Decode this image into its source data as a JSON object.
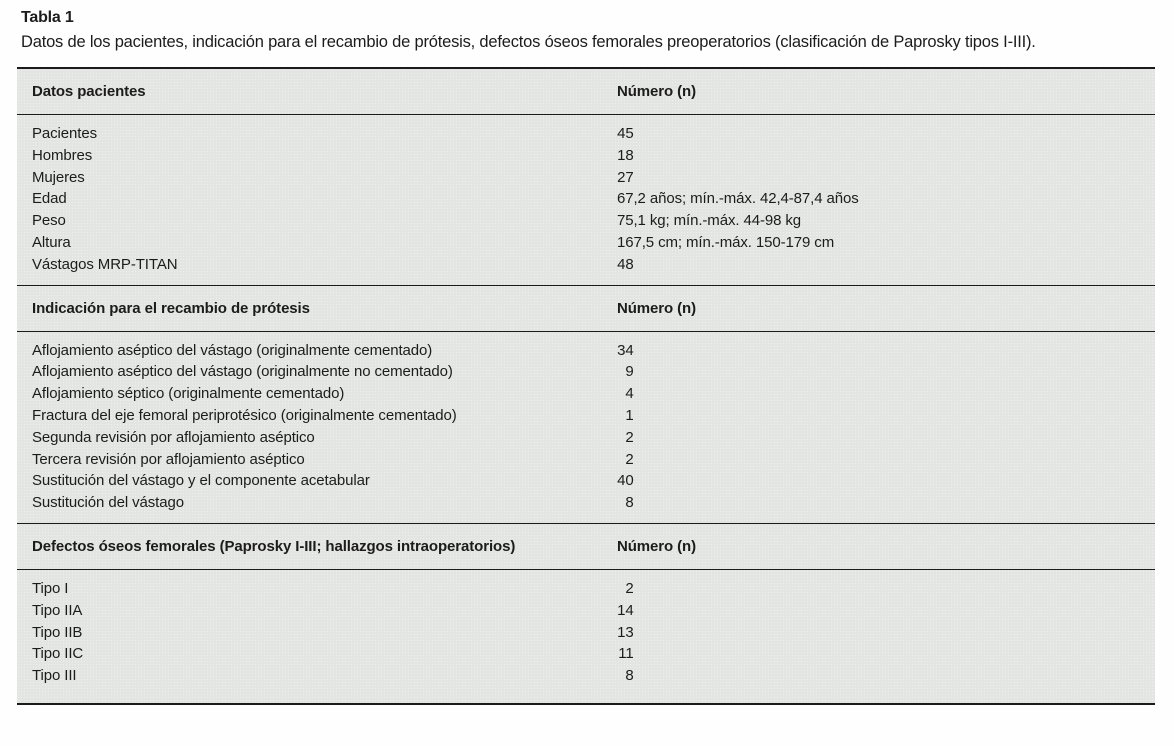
{
  "page": {
    "title_label": "Tabla 1",
    "title_desc": "Datos de los pacientes, indicación para el recambio de prótesis, defectos óseos femorales preoperatorios (clasificación de Paprosky tipos I-III)."
  },
  "table": {
    "sections": [
      {
        "header": {
          "label": "Datos pacientes",
          "number_label": "Número (n)"
        },
        "rows": [
          {
            "label": "Pacientes",
            "value": "45"
          },
          {
            "label": "Hombres",
            "value": "18"
          },
          {
            "label": "Mujeres",
            "value": "27"
          },
          {
            "label": "Edad",
            "value": "67,2 años; mín.-máx. 42,4-87,4 años"
          },
          {
            "label": "Peso",
            "value": "75,1 kg; mín.-máx. 44-98 kg"
          },
          {
            "label": "Altura",
            "value": "167,5 cm; mín.-máx. 150-179 cm"
          },
          {
            "label": "Vástagos MRP-TITAN",
            "value": "48"
          }
        ]
      },
      {
        "header": {
          "label": "Indicación para el recambio de prótesis",
          "number_label": "Número (n)"
        },
        "rows": [
          {
            "label": "Aflojamiento aséptico del vástago (originalmente cementado)",
            "value": "34"
          },
          {
            "label": "Aflojamiento aséptico del vástago (originalmente no cementado)",
            "value": "9"
          },
          {
            "label": "Aflojamiento séptico (originalmente cementado)",
            "value": "4"
          },
          {
            "label": "Fractura del eje femoral periprotésico (originalmente cementado)",
            "value": "1"
          },
          {
            "label": "Segunda revisión por aflojamiento aséptico",
            "value": "2"
          },
          {
            "label": "Tercera revisión por aflojamiento aséptico",
            "value": "2"
          },
          {
            "label": "Sustitución del vástago y el componente acetabular",
            "value": "40"
          },
          {
            "label": "Sustitución del vástago",
            "value": "8"
          }
        ]
      },
      {
        "header": {
          "label": "Defectos óseos femorales (Paprosky I-III; hallazgos intraoperatorios)",
          "number_label": "Número (n)"
        },
        "rows": [
          {
            "label": "Tipo I",
            "value": "2"
          },
          {
            "label": "Tipo IIA",
            "value": "14"
          },
          {
            "label": "Tipo IIB",
            "value": "13"
          },
          {
            "label": "Tipo IIC",
            "value": "11"
          },
          {
            "label": "Tipo III",
            "value": "8"
          }
        ]
      }
    ]
  },
  "colors": {
    "text": "#1c1c1c",
    "rule": "#1b1b1b",
    "table_bg": "#e3e5e2",
    "table_dot": "#eef0ec",
    "page_bg": "#fefefe"
  }
}
